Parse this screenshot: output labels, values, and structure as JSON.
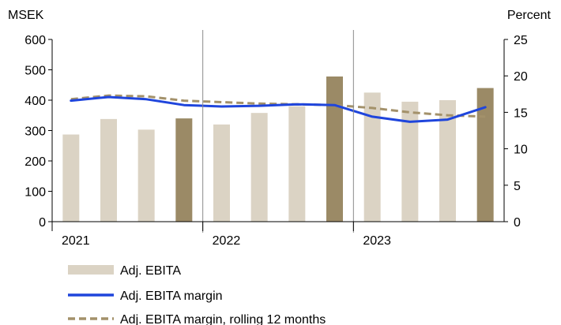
{
  "chart_data": {
    "type": "bar",
    "title": "",
    "left_axis": {
      "label": "MSEK",
      "ylim": [
        0,
        600
      ],
      "ticks": [
        0,
        100,
        200,
        300,
        400,
        500,
        600
      ]
    },
    "right_axis": {
      "label": "Percent",
      "ylim": [
        0,
        25
      ],
      "ticks": [
        0,
        5,
        10,
        15,
        20,
        25
      ]
    },
    "x_year_labels": [
      "2021",
      "2022",
      "2023"
    ],
    "quarters": [
      "2021 Q1",
      "2021 Q2",
      "2021 Q3",
      "2021 Q4",
      "2022 Q1",
      "2022 Q2",
      "2022 Q3",
      "2022 Q4",
      "2023 Q1",
      "2023 Q2",
      "2023 Q3",
      "2023 Q4"
    ],
    "series": [
      {
        "name": "Adj. EBITA",
        "kind": "bar",
        "axis": "left",
        "values": [
          287,
          338,
          303,
          340,
          320,
          358,
          380,
          478,
          425,
          395,
          400,
          440
        ],
        "highlight_q4": true
      },
      {
        "name": "Adj. EBITA margin",
        "kind": "line",
        "axis": "right",
        "values": [
          16.6,
          17.1,
          16.8,
          16.0,
          15.8,
          15.9,
          16.1,
          16.0,
          14.4,
          13.7,
          14.0,
          15.7
        ]
      },
      {
        "name": "Adj. EBITA margin, rolling 12 months",
        "kind": "dashed-line",
        "axis": "right",
        "values": [
          16.8,
          17.3,
          17.2,
          16.6,
          16.4,
          16.2,
          16.1,
          16.0,
          15.6,
          15.0,
          14.6,
          14.4
        ]
      }
    ],
    "colors": {
      "bar_light": "#dbd3c4",
      "bar_dark": "#9b8a66",
      "margin_line": "#1f45dc",
      "rolling_line": "#a3916a",
      "year_divider": "#8a8a8a"
    },
    "legend_position": "bottom-left",
    "grid": false
  }
}
